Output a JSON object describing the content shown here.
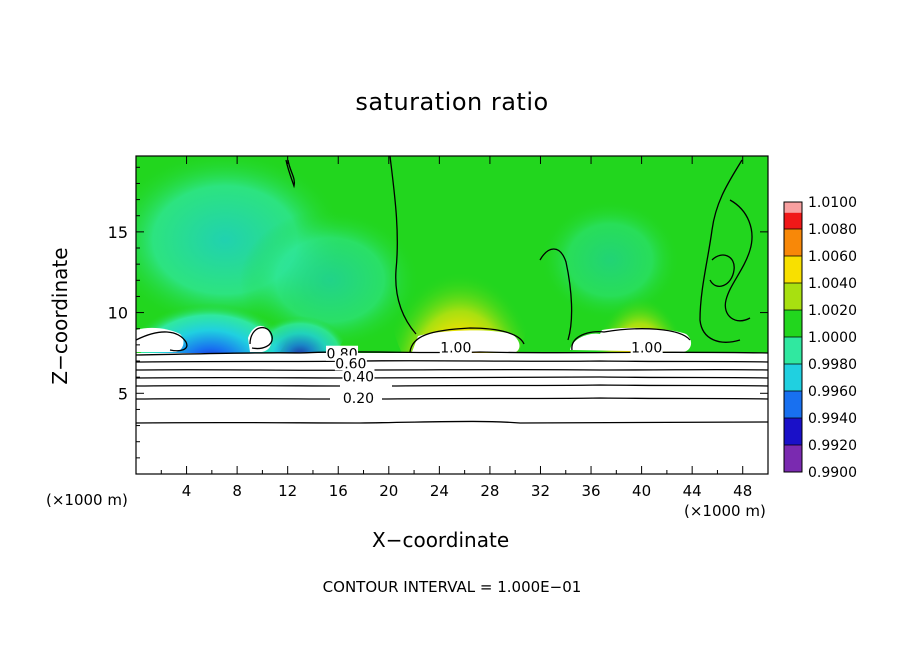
{
  "chart_data": {
    "type": "heatmap",
    "title": "saturation ratio",
    "xlabel": "X−coordinate",
    "ylabel": "Z−coordinate",
    "x_unit": "(×1000 m)",
    "x_ticks": [
      4,
      8,
      12,
      16,
      20,
      24,
      28,
      32,
      36,
      40,
      44,
      48
    ],
    "y_ticks": [
      5,
      10,
      15
    ],
    "xlim": [
      0,
      50
    ],
    "ylim": [
      0,
      19.7
    ],
    "colorbar": {
      "levels": [
        "0.9900",
        "0.9920",
        "0.9940",
        "0.9960",
        "0.9980",
        "1.0000",
        "1.0020",
        "1.0040",
        "1.0060",
        "1.0080",
        "1.0100"
      ],
      "colors": [
        "#7a2ab0",
        "#1a10c8",
        "#1870f0",
        "#20d0e0",
        "#30e8a0",
        "#22d61e",
        "#a8e010",
        "#f8e000",
        "#f88808",
        "#f01818",
        "#f8a0a0"
      ]
    },
    "contour_labels": [
      {
        "text": "0.80",
        "x": 16.3,
        "z": 7.45
      },
      {
        "text": "0.60",
        "x": 17.0,
        "z": 6.85
      },
      {
        "text": "0.40",
        "x": 17.6,
        "z": 6.05
      },
      {
        "text": "0.20",
        "x": 17.6,
        "z": 4.7
      },
      {
        "text": "1.00",
        "x": 25.3,
        "z": 7.85
      },
      {
        "text": "1.00",
        "x": 40.4,
        "z": 7.85
      }
    ],
    "contour_interval": "1.000E−01"
  },
  "footer": "CONTOUR INTERVAL = 1.000E−01"
}
